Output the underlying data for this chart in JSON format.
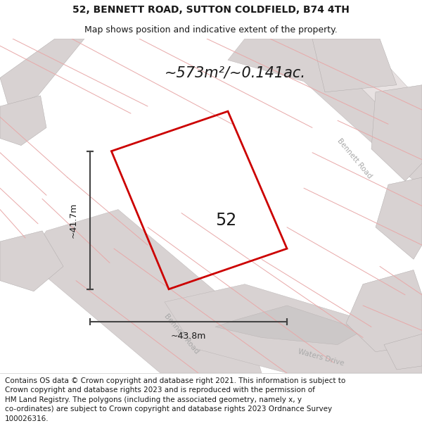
{
  "title": "52, BENNETT ROAD, SUTTON COLDFIELD, B74 4TH",
  "subtitle": "Map shows position and indicative extent of the property.",
  "area_text": "~573m²/~0.141ac.",
  "label_52": "52",
  "dim_width": "~43.8m",
  "dim_height": "~41.7m",
  "road_label_upper": "Bennett Road",
  "road_label_lower": "Bennett Road",
  "road_label_waters": "Waters Drive",
  "footer": "Contains OS data © Crown copyright and database right 2021. This information is subject to Crown copyright and database rights 2023 and is reproduced with the permission of\nHM Land Registry. The polygons (including the associated geometry, namely x, y\nco-ordinates) are subject to Crown copyright and database rights 2023 Ordnance Survey\n100026316.",
  "map_bg": "#f8f5f5",
  "property_color": "#cc0000",
  "road_fill": "#d8d2d2",
  "block_fill": "#d8d2d2",
  "pink_line_color": "#e8a8a8",
  "dim_line_color": "#444444",
  "text_color": "#1a1a1a",
  "road_text_color": "#aaaaaa"
}
